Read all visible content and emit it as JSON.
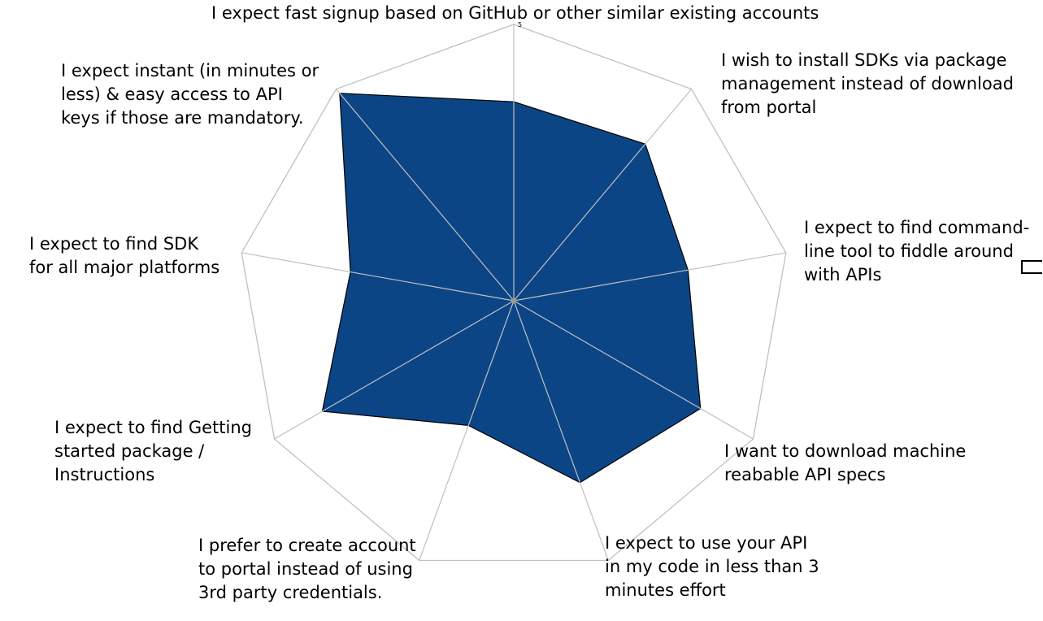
{
  "chart_data": {
    "type": "radar",
    "title": "",
    "scale": {
      "min": 0,
      "max": 5,
      "ticks": [
        5
      ]
    },
    "categories": [
      "I expect fast signup based on GitHub or other similar existing accounts",
      "I wish to install SDKs via package management instead of download from portal",
      "I expect to find command-line tool to fiddle around with APIs",
      "I want to download machine reabable API specs",
      "I expect to use your API in my code in less than 3 minutes effort",
      "I prefer to create account to portal instead of using 3rd party credentials.",
      "I expect to find Getting started package / Instructions",
      "I expect to find SDK for all major platforms",
      "I expect instant (in minutes or less) & easy access to API keys if those are mandatory."
    ],
    "category_lines": [
      [
        "I expect fast signup based on GitHub or other similar existing accounts"
      ],
      [
        "I wish to install SDKs via package",
        "management instead of download",
        "from portal"
      ],
      [
        "I expect to find command-",
        "line tool to fiddle around",
        "with APIs"
      ],
      [
        "I want to download machine",
        "reabable API specs"
      ],
      [
        "I expect to use your API",
        "in my code in less than 3",
        "minutes effort"
      ],
      [
        "I prefer to create account",
        "to portal instead of using",
        "3rd party credentials."
      ],
      [
        "I expect to find Getting",
        "started package /",
        "Instructions"
      ],
      [
        "I expect to find SDK",
        "for all major platforms"
      ],
      [
        "I expect instant (in minutes or",
        "less) & easy access to API",
        "keys if those are mandatory."
      ]
    ],
    "series": [
      {
        "values": [
          3.6,
          3.7,
          3.2,
          3.9,
          3.5,
          2.4,
          4.0,
          3.0,
          4.9
        ]
      }
    ],
    "colors": {
      "fill": "#0b4586",
      "stroke": "#000000",
      "grid": "#c0c0c0"
    },
    "grid": true
  }
}
